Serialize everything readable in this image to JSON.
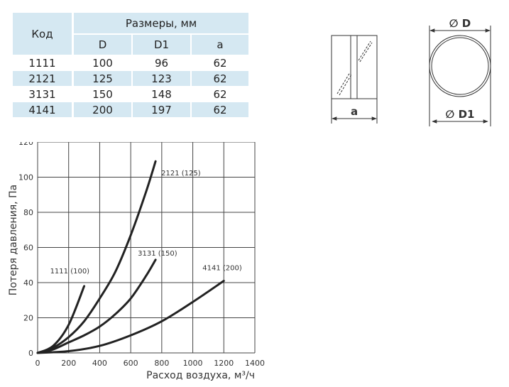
{
  "table": {
    "code_header": "Код",
    "sizes_header": "Размеры, мм",
    "columns": [
      "D",
      "D1",
      "a"
    ],
    "rows": [
      [
        "1111",
        "100",
        "96",
        "62"
      ],
      [
        "2121",
        "125",
        "123",
        "62"
      ],
      [
        "3131",
        "150",
        "148",
        "62"
      ],
      [
        "4141",
        "200",
        "197",
        "62"
      ]
    ]
  },
  "diagram": {
    "side_label": "a",
    "outer_label": "∅ D",
    "inner_label": "∅ D1"
  },
  "colors": {
    "header": "#d5e8f2",
    "curve": "#222222"
  },
  "chart_data": {
    "type": "line",
    "xlabel": "Расход воздуха, м³/ч",
    "ylabel": "Потеря давления, Па",
    "xlim": [
      0,
      1400
    ],
    "ylim": [
      0,
      120
    ],
    "xticks": [
      0,
      200,
      400,
      600,
      800,
      1000,
      1200,
      1400
    ],
    "yticks": [
      0,
      20,
      40,
      60,
      80,
      100,
      120
    ],
    "grid": true,
    "series": [
      {
        "name": "1111 (100)",
        "x": [
          0,
          100,
          200,
          300
        ],
        "y": [
          0,
          4,
          16,
          38
        ]
      },
      {
        "name": "2121 (125)",
        "x": [
          0,
          100,
          200,
          300,
          400,
          500,
          600,
          700,
          760
        ],
        "y": [
          0,
          3,
          9,
          18,
          31,
          46,
          67,
          92,
          109
        ]
      },
      {
        "name": "3131 (150)",
        "x": [
          0,
          100,
          200,
          300,
          400,
          500,
          600,
          700,
          760
        ],
        "y": [
          0,
          2,
          6,
          10,
          15,
          22,
          31,
          44,
          53
        ]
      },
      {
        "name": "4141 (200)",
        "x": [
          0,
          200,
          400,
          600,
          800,
          1000,
          1200
        ],
        "y": [
          0,
          1,
          4,
          10,
          18,
          29,
          41
        ]
      }
    ]
  }
}
